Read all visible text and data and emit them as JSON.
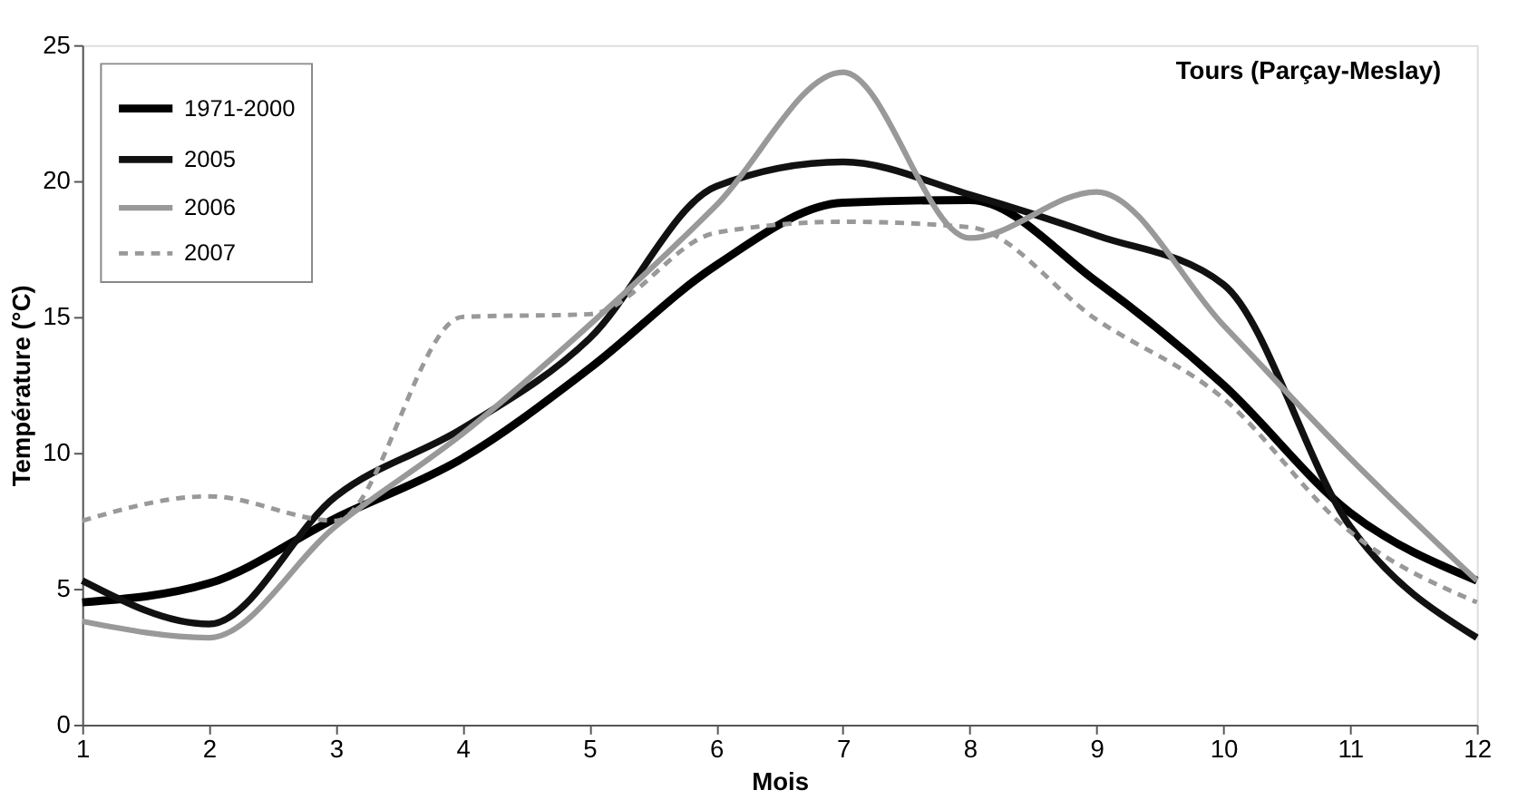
{
  "chart_data": {
    "type": "line",
    "xlabel": "Mois",
    "ylabel": "Température (°C)",
    "annotations": [
      "Tours (Parçay-Meslay)"
    ],
    "x": [
      1,
      2,
      3,
      4,
      5,
      6,
      7,
      8,
      9,
      10,
      11,
      12
    ],
    "xlim": [
      1,
      12
    ],
    "xticks": [
      1,
      2,
      3,
      4,
      5,
      6,
      7,
      8,
      9,
      10,
      11,
      12
    ],
    "ylim": [
      0,
      25
    ],
    "yticks": [
      0,
      5,
      10,
      15,
      20,
      25
    ],
    "grid": false,
    "legend": "top left",
    "marker": "none",
    "series": [
      {
        "name": "1971-2000",
        "color": "#000000",
        "line_style": "solid",
        "values": [
          4.5,
          5.2,
          7.6,
          9.8,
          13.1,
          16.9,
          19.2,
          19.3,
          16.3,
          12.5,
          7.8,
          5.3
        ]
      },
      {
        "name": "2005",
        "color": "#111111",
        "line_style": "solid",
        "values": [
          5.3,
          3.7,
          8.4,
          10.9,
          14.2,
          19.8,
          20.7,
          19.5,
          18,
          16.2,
          7.3,
          3.2
        ]
      },
      {
        "name": "2006",
        "color": "#999999",
        "line_style": "solid",
        "values": [
          3.8,
          3.2,
          7.3,
          10.7,
          14.7,
          19.1,
          24,
          17.9,
          19.6,
          14.7,
          9.8,
          5.3
        ]
      },
      {
        "name": "2007",
        "color": "#999999",
        "line_style": "dashed",
        "values": [
          7.5,
          8.4,
          7.5,
          15,
          15.1,
          18.1,
          18.5,
          18.3,
          14.9,
          12,
          7.1,
          4.5
        ]
      }
    ]
  }
}
